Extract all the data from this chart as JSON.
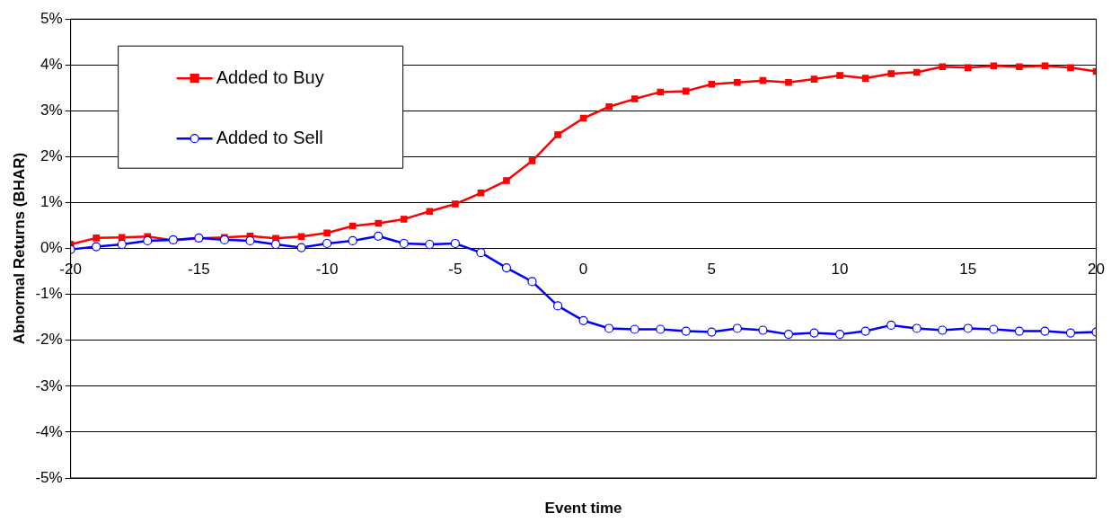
{
  "chart_data": {
    "type": "line",
    "xlabel": "Event time",
    "ylabel": "Abnormal Returns (BHAR)",
    "x": [
      -20,
      -19,
      -18,
      -17,
      -16,
      -15,
      -14,
      -13,
      -12,
      -11,
      -10,
      -9,
      -8,
      -7,
      -6,
      -5,
      -4,
      -3,
      -2,
      -1,
      0,
      1,
      2,
      3,
      4,
      5,
      6,
      7,
      8,
      9,
      10,
      11,
      12,
      13,
      14,
      15,
      16,
      17,
      18,
      19,
      20
    ],
    "series": [
      {
        "name": "Added to Buy",
        "color": "#ff0000",
        "marker": "square",
        "values": [
          0.09,
          0.23,
          0.24,
          0.26,
          0.18,
          0.22,
          0.24,
          0.27,
          0.22,
          0.26,
          0.34,
          0.49,
          0.55,
          0.64,
          0.81,
          0.97,
          1.21,
          1.48,
          1.91,
          2.48,
          2.84,
          3.09,
          3.26,
          3.41,
          3.43,
          3.58,
          3.62,
          3.66,
          3.62,
          3.69,
          3.77,
          3.71,
          3.81,
          3.84,
          3.96,
          3.94,
          3.98,
          3.96,
          3.98,
          3.94,
          3.86
        ]
      },
      {
        "name": "Added to Sell",
        "color": "#0000ff",
        "marker": "circle",
        "values": [
          -0.02,
          0.04,
          0.09,
          0.17,
          0.19,
          0.23,
          0.19,
          0.17,
          0.09,
          0.02,
          0.11,
          0.17,
          0.27,
          0.11,
          0.09,
          0.11,
          -0.09,
          -0.42,
          -0.72,
          -1.25,
          -1.57,
          -1.74,
          -1.76,
          -1.76,
          -1.8,
          -1.82,
          -1.74,
          -1.78,
          -1.87,
          -1.84,
          -1.87,
          -1.8,
          -1.67,
          -1.74,
          -1.78,
          -1.74,
          -1.76,
          -1.8,
          -1.8,
          -1.84,
          -1.82
        ]
      }
    ],
    "xlim": [
      -20,
      20
    ],
    "xticks": [
      -20,
      -15,
      -10,
      -5,
      0,
      5,
      10,
      15,
      20
    ],
    "ylim": [
      -5,
      5
    ],
    "yticks": [
      {
        "value": -5,
        "label": "-5%"
      },
      {
        "value": -4,
        "label": "-4%"
      },
      {
        "value": -3,
        "label": "-3%"
      },
      {
        "value": -2,
        "label": "-2%"
      },
      {
        "value": -1,
        "label": "-1%"
      },
      {
        "value": 0,
        "label": "0%"
      },
      {
        "value": 1,
        "label": "1%"
      },
      {
        "value": 2,
        "label": "2%"
      },
      {
        "value": 3,
        "label": "3%"
      },
      {
        "value": 4,
        "label": "4%"
      },
      {
        "value": 5,
        "label": "5%"
      }
    ],
    "grid": "y",
    "legend": "top left",
    "line_style": "solid"
  }
}
